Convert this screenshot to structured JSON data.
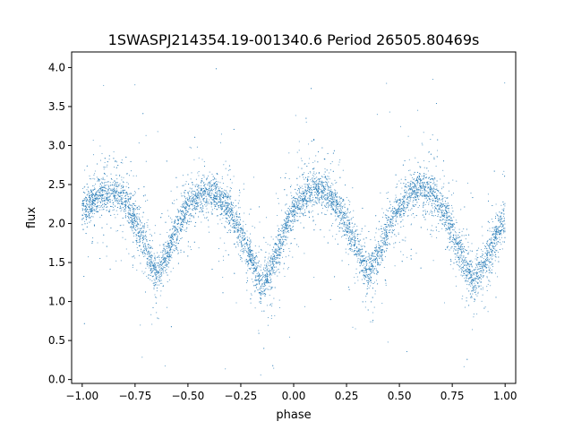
{
  "chart_data": {
    "type": "scatter",
    "title": "1SWASPJ214354.19-001340.6 Period 26505.80469s",
    "xlabel": "phase",
    "ylabel": "flux",
    "xlim": [
      -1.05,
      1.05
    ],
    "ylim": [
      -0.05,
      4.2
    ],
    "x_ticks": [
      -1.0,
      -0.75,
      -0.5,
      -0.25,
      0.0,
      0.25,
      0.5,
      0.75,
      1.0
    ],
    "x_tick_labels": [
      "−1.00",
      "−0.75",
      "−0.50",
      "−0.25",
      "0.00",
      "0.25",
      "0.50",
      "0.75",
      "1.00"
    ],
    "y_ticks": [
      0.0,
      0.5,
      1.0,
      1.5,
      2.0,
      2.5,
      3.0,
      3.5,
      4.0
    ],
    "y_tick_labels": [
      "0.0",
      "0.5",
      "1.0",
      "1.5",
      "2.0",
      "2.5",
      "3.0",
      "3.5",
      "4.0"
    ],
    "grid": false,
    "legend": "none",
    "marker_color": "#1f77b4",
    "series": [
      {
        "x": [
          -1.0,
          -0.95,
          -0.9,
          -0.85,
          -0.8,
          -0.75,
          -0.7,
          -0.65,
          -0.6,
          -0.55,
          -0.5,
          -0.45,
          -0.4,
          -0.35,
          -0.3,
          -0.25,
          -0.2,
          -0.15,
          -0.1,
          -0.05,
          0.0,
          0.05,
          0.1,
          0.15,
          0.2,
          0.25,
          0.3,
          0.35,
          0.4,
          0.45,
          0.5,
          0.55,
          0.6,
          0.65,
          0.7,
          0.75,
          0.8,
          0.85,
          0.9,
          0.95,
          1.0
        ],
        "y": [
          2.15,
          2.3,
          2.4,
          2.4,
          2.3,
          2.05,
          1.7,
          1.35,
          1.6,
          1.95,
          2.2,
          2.35,
          2.4,
          2.35,
          2.15,
          1.85,
          1.55,
          1.2,
          1.45,
          1.85,
          2.15,
          2.35,
          2.45,
          2.4,
          2.25,
          2.0,
          1.7,
          1.35,
          1.6,
          1.95,
          2.2,
          2.35,
          2.45,
          2.4,
          2.2,
          1.9,
          1.55,
          1.25,
          1.5,
          1.8,
          2.1
        ]
      }
    ]
  }
}
